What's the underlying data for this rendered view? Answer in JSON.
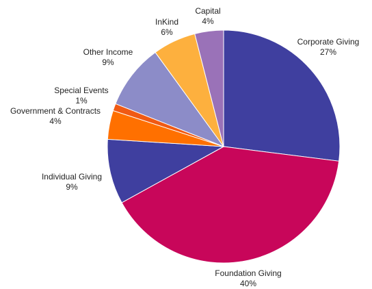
{
  "chart_data": {
    "type": "pie",
    "start_angle_deg": 0,
    "direction": "clockwise",
    "slices": [
      {
        "label": "Corporate Giving",
        "value": 27,
        "pct_label": "27%",
        "color": "#3F3F9F"
      },
      {
        "label": "Foundation Giving",
        "value": 40,
        "pct_label": "40%",
        "color": "#C8065A"
      },
      {
        "label": "Individual Giving",
        "value": 9,
        "pct_label": "9%",
        "color": "#3F3F9F"
      },
      {
        "label": "Government & Contracts",
        "value": 4,
        "pct_label": "4%",
        "color": "#FF7000"
      },
      {
        "label": "Special Events",
        "value": 1,
        "pct_label": "1%",
        "color": "#F05A14"
      },
      {
        "label": "Other Income",
        "value": 9,
        "pct_label": "9%",
        "color": "#8C8CC8"
      },
      {
        "label": "InKind",
        "value": 6,
        "pct_label": "6%",
        "color": "#FDB03E"
      },
      {
        "label": "Capital",
        "value": 4,
        "pct_label": "4%",
        "color": "#9A72B8"
      }
    ]
  }
}
